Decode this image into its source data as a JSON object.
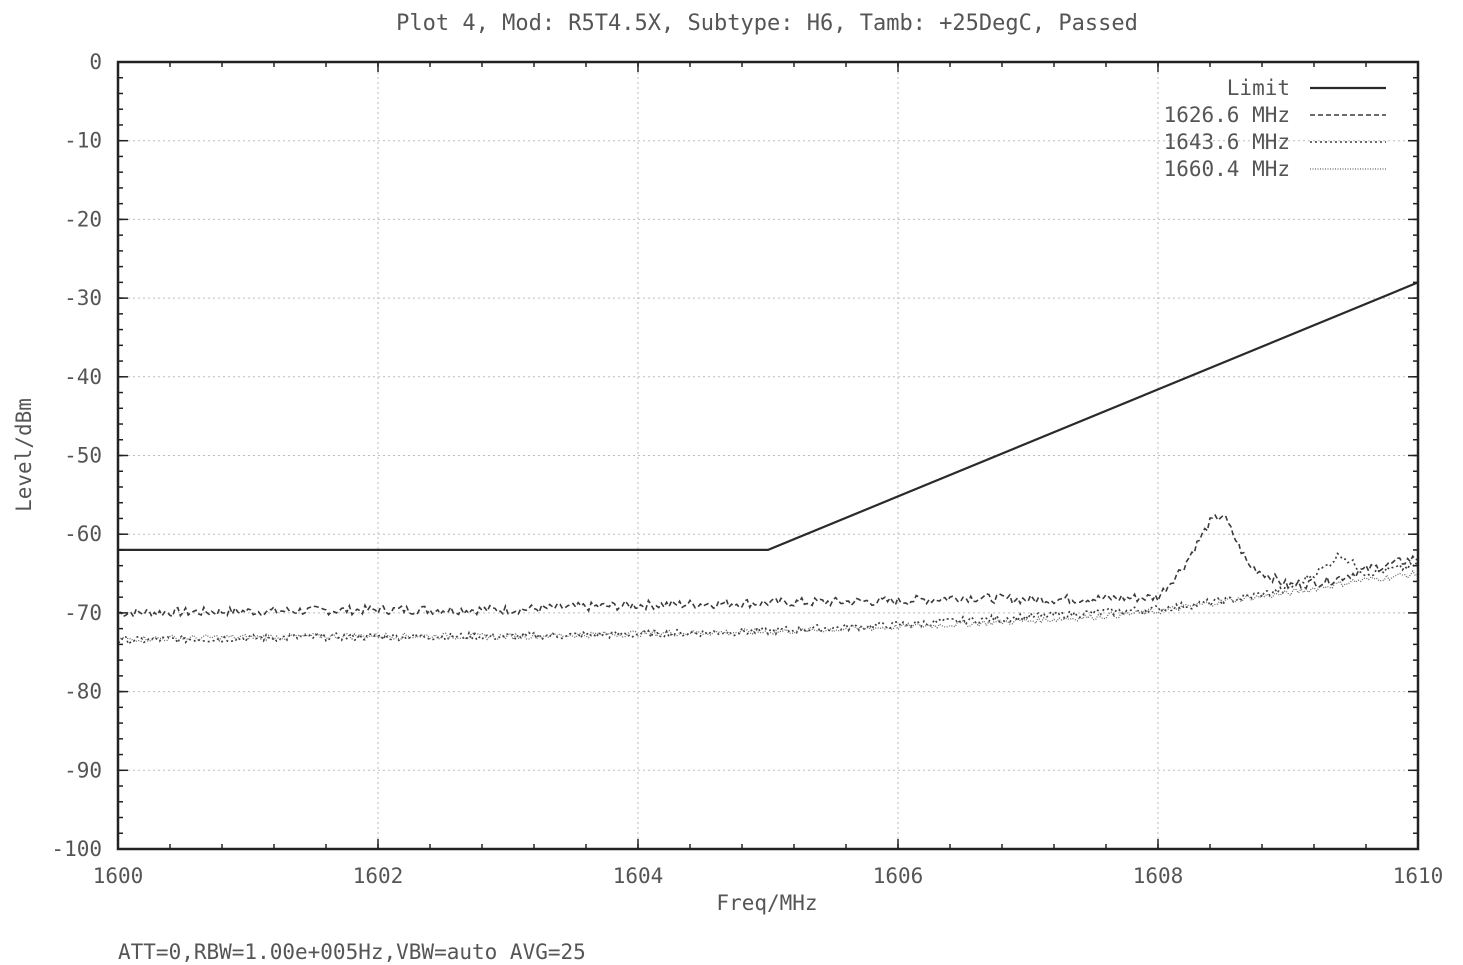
{
  "chart_data": {
    "type": "line",
    "title": "Plot 4, Mod: R5T4.5X, Subtype: H6, Tamb: +25DegC, Passed",
    "xlabel": "Freq/MHz",
    "ylabel": "Level/dBm",
    "xlim": [
      1600,
      1610
    ],
    "ylim": [
      -100,
      0
    ],
    "x_ticks": [
      "1600",
      "1602",
      "1604",
      "1606",
      "1608",
      "1610"
    ],
    "y_ticks": [
      "0",
      "-10",
      "-20",
      "-30",
      "-40",
      "-50",
      "-60",
      "-70",
      "-80",
      "-90",
      "-100"
    ],
    "grid": true,
    "legend_position": "top-right",
    "footnote": "ATT=0,RBW=1.00e+005Hz,VBW=auto AVG=25",
    "series": [
      {
        "name": "Limit",
        "style": "solid",
        "x": [
          1600,
          1605,
          1610
        ],
        "y": [
          -62,
          -62,
          -28
        ]
      },
      {
        "name": "1626.6 MHz",
        "style": "dashed",
        "x": [
          1600,
          1601,
          1602,
          1603,
          1604,
          1605,
          1606,
          1606.5,
          1607,
          1607.5,
          1608,
          1608.2,
          1608.4,
          1608.5,
          1608.7,
          1609,
          1609.3,
          1609.6,
          1610
        ],
        "y": [
          -70,
          -69.8,
          -69.6,
          -69.6,
          -69,
          -68.7,
          -68.5,
          -68,
          -68.3,
          -68.2,
          -68,
          -64,
          -58.5,
          -57.5,
          -64,
          -66.5,
          -66,
          -64.5,
          -63
        ]
      },
      {
        "name": "1643.6 MHz",
        "style": "dotted",
        "x": [
          1600,
          1601,
          1602,
          1603,
          1604,
          1605,
          1606,
          1607,
          1608,
          1608.5,
          1609,
          1609.3,
          1609.4,
          1609.6,
          1610
        ],
        "y": [
          -73.5,
          -73.2,
          -73,
          -73,
          -72.7,
          -72.3,
          -71.5,
          -70.5,
          -69.5,
          -68.5,
          -67,
          -64,
          -62.5,
          -65,
          -64
        ]
      },
      {
        "name": "1660.4 MHz",
        "style": "dense-dotted",
        "x": [
          1600,
          1601,
          1602,
          1603,
          1604,
          1605,
          1606,
          1607,
          1607.5,
          1608,
          1608.5,
          1609,
          1609.5,
          1610
        ],
        "y": [
          -73.3,
          -73.1,
          -72.9,
          -73,
          -72.6,
          -72.4,
          -71.8,
          -71,
          -70.5,
          -69.8,
          -68.5,
          -67.5,
          -66,
          -65
        ]
      }
    ]
  }
}
